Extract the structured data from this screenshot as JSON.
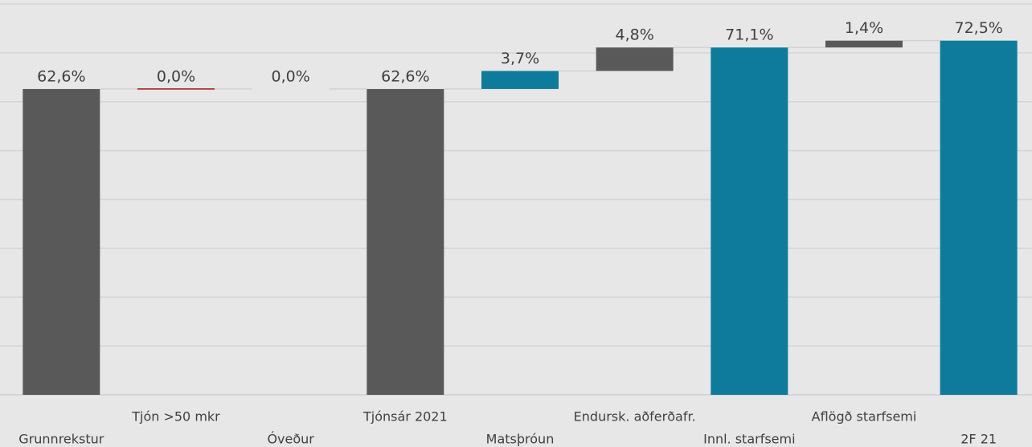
{
  "chart_data": {
    "type": "waterfall",
    "categories": [
      "Grunnrekstur",
      "Tjón >50 mkr",
      "Óveður",
      "Tjónsár 2021",
      "Matsþróun",
      "Endursk. aðferðafr.",
      "Innl. starfsemi",
      "Aflögð starfsemi",
      "2F 21"
    ],
    "values": [
      62.6,
      0.0,
      0.0,
      62.6,
      3.7,
      4.8,
      71.1,
      1.4,
      72.5
    ],
    "value_labels": [
      "62,6%",
      "0,0%",
      "0,0%",
      "62,6%",
      "3,7%",
      "4,8%",
      "71,1%",
      "1,4%",
      "72,5%"
    ],
    "measures": [
      "total",
      "relative",
      "relative",
      "total",
      "relative",
      "relative",
      "total",
      "relative",
      "total"
    ],
    "colors": [
      "#595959",
      "#a31515",
      "#e7e7e7",
      "#595959",
      "#0f7b9c",
      "#595959",
      "#0f7b9c",
      "#595959",
      "#0f7b9c"
    ],
    "ylim": [
      0,
      80
    ],
    "yticks": [
      0,
      10,
      20,
      30,
      40,
      50,
      60,
      70,
      80
    ],
    "grid": true
  }
}
